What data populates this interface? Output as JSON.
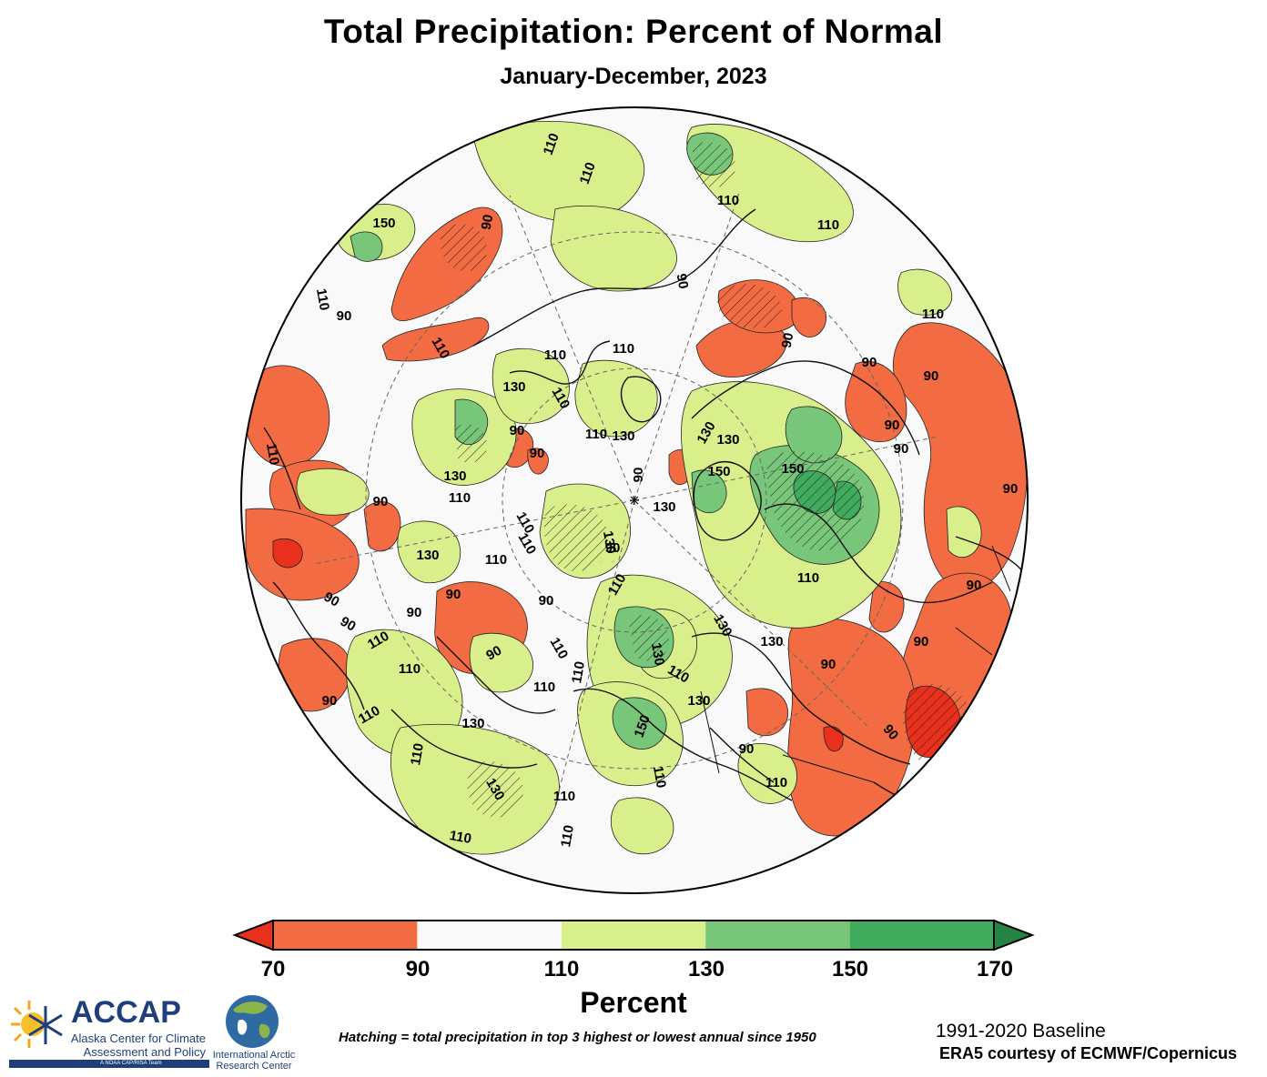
{
  "header": {
    "title": "Total Precipitation: Percent of Normal",
    "subtitle": "January-December, 2023"
  },
  "map": {
    "projection": "north-polar-stereographic",
    "contour_labels": [
      "90",
      "110",
      "130",
      "150"
    ],
    "colors": {
      "below_70": "#e8301c",
      "70_90": "#f36b42",
      "90_110": "#f9f9f9",
      "110_130": "#d9ef8b",
      "130_150": "#78c679",
      "150_170": "#41ab5d",
      "above_170": "#238443"
    }
  },
  "colorbar": {
    "ticks": [
      "70",
      "90",
      "110",
      "130",
      "150",
      "170"
    ],
    "colors": [
      "#f36b42",
      "#f9f9f9",
      "#d9ef8b",
      "#78c679",
      "#41ab5d"
    ],
    "low_extend_color": "#e8301c",
    "high_extend_color": "#238443",
    "unit": "Percent"
  },
  "footer": {
    "hatching_note": "Hatching = total precipitation in top 3 highest or lowest annual since 1950",
    "baseline": "1991-2020 Baseline",
    "source": "ERA5 courtesy of ECMWF/Copernicus"
  },
  "logos": {
    "accap": {
      "name": "ACCAP",
      "line1": "Alaska Center for Climate",
      "line2": "Assessment and Policy",
      "bar_text": "A NOAA CAP/RISA Team"
    },
    "iarc": {
      "line1": "International Arctic",
      "line2": "Research Center"
    }
  }
}
